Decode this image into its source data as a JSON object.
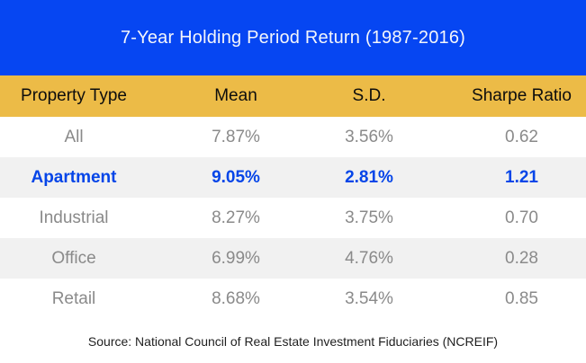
{
  "title": "7-Year Holding Period Return (1987-2016)",
  "source_note": "Source: National Council of Real Estate Investment Fiduciaries (NCREIF)",
  "columns": [
    "Property Type",
    "Mean",
    "S.D.",
    "Sharpe Ratio"
  ],
  "rows": [
    {
      "property": "All",
      "mean": "7.87%",
      "sd": "3.56%",
      "sharpe": "0.62",
      "highlighted": false
    },
    {
      "property": "Apartment",
      "mean": "9.05%",
      "sd": "2.81%",
      "sharpe": "1.21",
      "highlighted": true
    },
    {
      "property": "Industrial",
      "mean": "8.27%",
      "sd": "3.75%",
      "sharpe": "0.70",
      "highlighted": false
    },
    {
      "property": "Office",
      "mean": "6.99%",
      "sd": "4.76%",
      "sharpe": "0.28",
      "highlighted": false
    },
    {
      "property": "Retail",
      "mean": "8.68%",
      "sd": "3.54%",
      "sharpe": "0.85",
      "highlighted": false
    }
  ],
  "colors": {
    "band_blue": "#0646F2",
    "gold": "#ECBB47",
    "highlight_blue": "#0545E8",
    "row_alt": "#F1F1F1",
    "text_gray": "#8A8A8A"
  },
  "chart_data": {
    "type": "table",
    "title": "7-Year Holding Period Return (1987-2016)",
    "columns": [
      "Property Type",
      "Mean",
      "S.D.",
      "Sharpe Ratio"
    ],
    "rows": [
      [
        "All",
        "7.87%",
        "3.56%",
        "0.62"
      ],
      [
        "Apartment",
        "9.05%",
        "2.81%",
        "1.21"
      ],
      [
        "Industrial",
        "8.27%",
        "3.75%",
        "0.70"
      ],
      [
        "Office",
        "6.99%",
        "4.76%",
        "0.28"
      ],
      [
        "Retail",
        "8.68%",
        "3.54%",
        "0.85"
      ]
    ],
    "highlighted_row": "Apartment",
    "source": "Source: National Council of Real Estate Investment Fiduciaries (NCREIF)"
  }
}
